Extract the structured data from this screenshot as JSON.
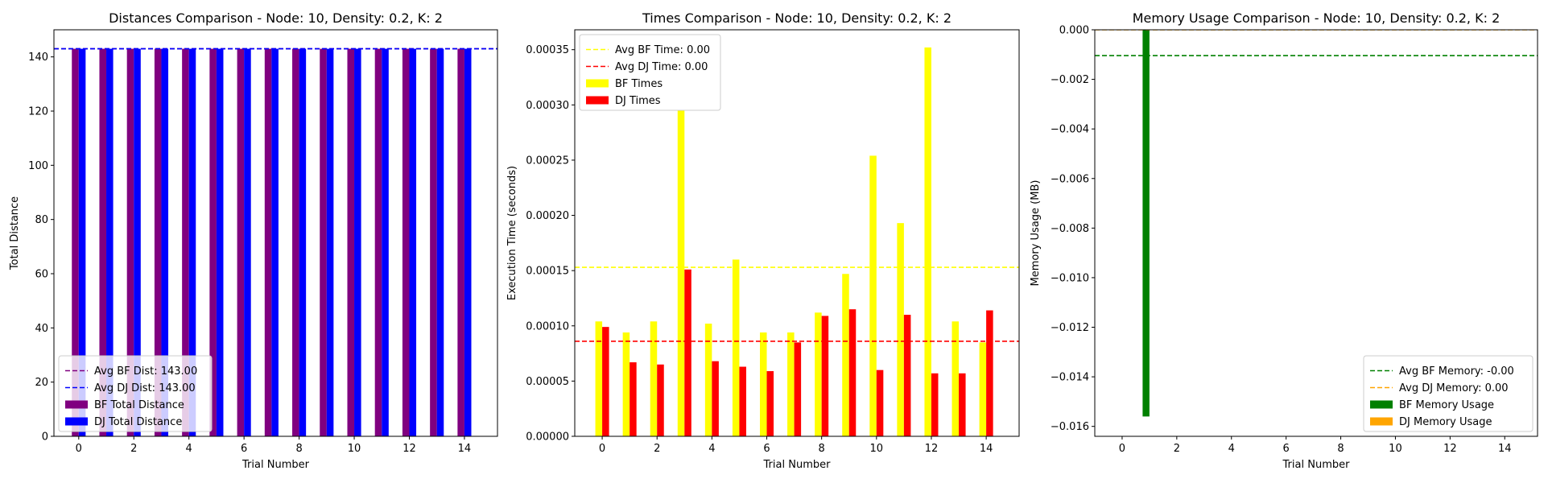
{
  "chart_data": [
    {
      "type": "bar",
      "title": "Distances Comparison - Node: 10, Density: 0.2, K: 2",
      "xlabel": "Trial Number",
      "ylabel": "Total Distance",
      "x": [
        0,
        1,
        2,
        3,
        4,
        5,
        6,
        7,
        8,
        9,
        10,
        11,
        12,
        13,
        14
      ],
      "xticks": [
        0,
        2,
        4,
        6,
        8,
        10,
        12,
        14
      ],
      "xlim": [
        -0.9,
        15.2
      ],
      "ylim": [
        0,
        150
      ],
      "yticks": [
        0,
        20,
        40,
        60,
        80,
        100,
        120,
        140
      ],
      "ytick_labels": [
        "0",
        "20",
        "40",
        "60",
        "80",
        "100",
        "120",
        "140"
      ],
      "series": [
        {
          "name": "BF Total Distance",
          "color": "#800080",
          "values": [
            143,
            143,
            143,
            143,
            143,
            143,
            143,
            143,
            143,
            143,
            143,
            143,
            143,
            143,
            143
          ]
        },
        {
          "name": "DJ Total Distance",
          "color": "#0000ff",
          "values": [
            143,
            143,
            143,
            143,
            143,
            143,
            143,
            143,
            143,
            143,
            143,
            143,
            143,
            143,
            143
          ]
        }
      ],
      "avg_lines": [
        {
          "name": "Avg BF Dist: 143.00",
          "color": "#800080",
          "value": 143
        },
        {
          "name": "Avg DJ Dist: 143.00",
          "color": "#0000ff",
          "value": 143
        }
      ],
      "legend": "lower-left"
    },
    {
      "type": "bar",
      "title": "Times Comparison - Node: 10, Density: 0.2, K: 2",
      "xlabel": "Trial Number",
      "ylabel": "Execution Time (seconds)",
      "x": [
        0,
        1,
        2,
        3,
        4,
        5,
        6,
        7,
        8,
        9,
        10,
        11,
        12,
        13,
        14
      ],
      "xticks": [
        0,
        2,
        4,
        6,
        8,
        10,
        12,
        14
      ],
      "xlim": [
        -1.0,
        15.2
      ],
      "ylim": [
        0,
        0.000368
      ],
      "yticks": [
        0,
        5e-05,
        0.0001,
        0.00015,
        0.0002,
        0.00025,
        0.0003,
        0.00035
      ],
      "ytick_labels": [
        "0.00000",
        "0.00005",
        "0.00010",
        "0.00015",
        "0.00020",
        "0.00025",
        "0.00030",
        "0.00035"
      ],
      "series": [
        {
          "name": "BF Times",
          "color": "#ffff00",
          "values": [
            0.000104,
            9.4e-05,
            0.000104,
            0.000295,
            0.000102,
            0.00016,
            9.4e-05,
            9.4e-05,
            0.000112,
            0.000147,
            0.000254,
            0.000193,
            0.000352,
            0.000104,
            8.5e-05
          ]
        },
        {
          "name": "DJ Times",
          "color": "#ff0000",
          "values": [
            9.9e-05,
            6.7e-05,
            6.5e-05,
            0.000151,
            6.8e-05,
            6.3e-05,
            5.9e-05,
            8.5e-05,
            0.000109,
            0.000115,
            6e-05,
            0.00011,
            5.7e-05,
            5.7e-05,
            0.000114
          ]
        }
      ],
      "avg_lines": [
        {
          "name": "Avg BF Time: 0.00",
          "color": "#ffff00",
          "value": 0.000153
        },
        {
          "name": "Avg DJ Time: 0.00",
          "color": "#ff0000",
          "value": 8.6e-05
        }
      ],
      "legend": "upper-left"
    },
    {
      "type": "bar",
      "title": "Memory Usage Comparison - Node: 10, Density: 0.2, K: 2",
      "xlabel": "Trial Number",
      "ylabel": "Memory Usage (MB)",
      "x": [
        0,
        1,
        2,
        3,
        4,
        5,
        6,
        7,
        8,
        9,
        10,
        11,
        12,
        13,
        14
      ],
      "xticks": [
        0,
        2,
        4,
        6,
        8,
        10,
        12,
        14
      ],
      "xlim": [
        -1.0,
        15.2
      ],
      "ylim": [
        -0.0164,
        0
      ],
      "yticks": [
        0,
        -0.002,
        -0.004,
        -0.006,
        -0.008,
        -0.01,
        -0.012,
        -0.014,
        -0.016
      ],
      "ytick_labels": [
        "0.000",
        "−0.002",
        "−0.004",
        "−0.006",
        "−0.008",
        "−0.010",
        "−0.012",
        "−0.014",
        "−0.016"
      ],
      "series": [
        {
          "name": "BF Memory Usage",
          "color": "#008000",
          "values": [
            0,
            -0.0156,
            0,
            0,
            0,
            0,
            0,
            0,
            0,
            0,
            0,
            0,
            0,
            0,
            0
          ]
        },
        {
          "name": "DJ Memory Usage",
          "color": "#ffa500",
          "values": [
            0,
            0,
            0,
            0,
            0,
            0,
            0,
            0,
            0,
            0,
            0,
            0,
            0,
            0,
            0
          ]
        }
      ],
      "avg_lines": [
        {
          "name": "Avg BF Memory: -0.00",
          "color": "#008000",
          "value": -0.00104
        },
        {
          "name": "Avg DJ Memory: 0.00",
          "color": "#ffa500",
          "value": 0
        }
      ],
      "legend": "lower-right"
    }
  ]
}
